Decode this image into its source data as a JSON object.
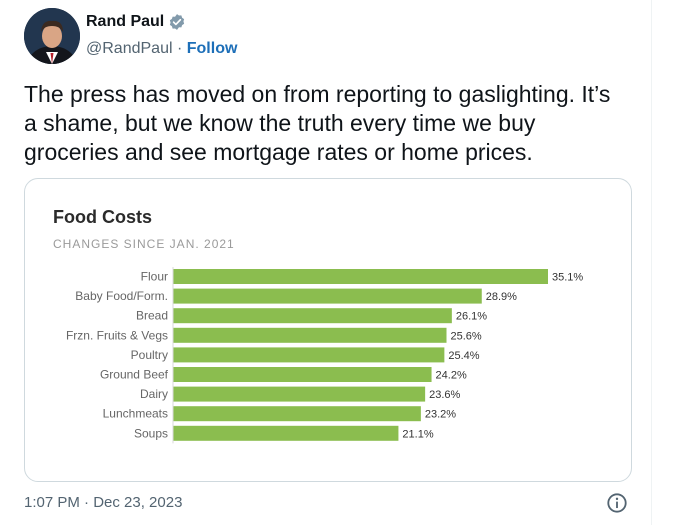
{
  "author": {
    "name": "Rand Paul",
    "handle": "@RandPaul",
    "separator": "·",
    "follow_label": "Follow",
    "verified_badge_color": "#829aab"
  },
  "tweet": {
    "text_lines": [
      "The press has moved on from reporting to gaslighting. It’s",
      "a shame, but we know the truth every time we buy",
      "groceries and see mortgage rates or home prices."
    ]
  },
  "footer": {
    "timestamp": "1:07 PM · Dec 23, 2023",
    "info_icon": "info-icon"
  },
  "chart_data": {
    "type": "bar",
    "orientation": "horizontal",
    "title": "Food Costs",
    "subtitle": "CHANGES SINCE JAN. 2021",
    "categories": [
      "Flour",
      "Baby Food/Form.",
      "Bread",
      "Frzn. Fruits & Vegs",
      "Poultry",
      "Ground Beef",
      "Dairy",
      "Lunchmeats",
      "Soups"
    ],
    "values": [
      35.1,
      28.9,
      26.1,
      25.6,
      25.4,
      24.2,
      23.6,
      23.2,
      21.1
    ],
    "value_labels": [
      "35.1%",
      "28.9%",
      "26.1%",
      "25.6%",
      "25.4%",
      "24.2%",
      "23.6%",
      "23.2%",
      "21.1%"
    ],
    "unit": "%",
    "bar_color": "#8bbd4f",
    "xlim": [
      0,
      35.1
    ],
    "grid": false,
    "legend": "none"
  }
}
